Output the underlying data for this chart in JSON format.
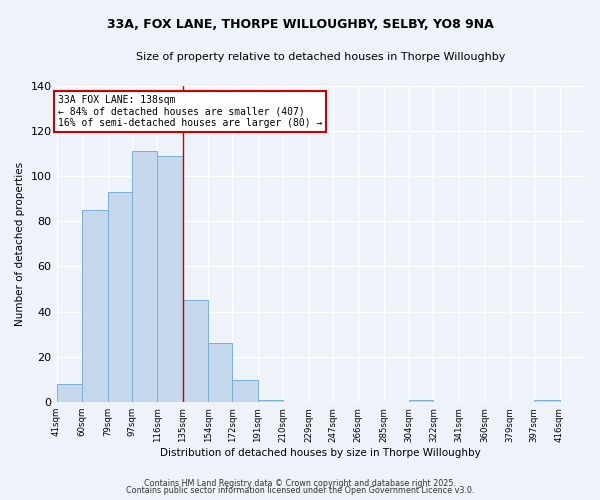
{
  "title_line1": "33A, FOX LANE, THORPE WILLOUGHBY, SELBY, YO8 9NA",
  "title_line2": "Size of property relative to detached houses in Thorpe Willoughby",
  "xlabel": "Distribution of detached houses by size in Thorpe Willoughby",
  "ylabel": "Number of detached properties",
  "bar_edges": [
    41,
    60,
    79,
    97,
    116,
    135,
    154,
    172,
    191,
    210,
    229,
    247,
    266,
    285,
    304,
    322,
    341,
    360,
    379,
    397,
    416
  ],
  "bar_heights": [
    8,
    85,
    93,
    111,
    109,
    45,
    26,
    10,
    1,
    0,
    0,
    0,
    0,
    0,
    1,
    0,
    0,
    0,
    0,
    1,
    0
  ],
  "bar_color": "#c6d9ec",
  "bar_edgecolor": "#7aafd4",
  "property_line_x": 135,
  "property_line_color": "#cc0000",
  "ylim": [
    0,
    140
  ],
  "yticks": [
    0,
    20,
    40,
    60,
    80,
    100,
    120,
    140
  ],
  "xtick_labels": [
    "41sqm",
    "60sqm",
    "79sqm",
    "97sqm",
    "116sqm",
    "135sqm",
    "154sqm",
    "172sqm",
    "191sqm",
    "210sqm",
    "229sqm",
    "247sqm",
    "266sqm",
    "285sqm",
    "304sqm",
    "322sqm",
    "341sqm",
    "360sqm",
    "379sqm",
    "397sqm",
    "416sqm"
  ],
  "annotation_title": "33A FOX LANE: 138sqm",
  "annotation_line1": "← 84% of detached houses are smaller (407)",
  "annotation_line2": "16% of semi-detached houses are larger (80) →",
  "annotation_box_color": "#ffffff",
  "annotation_box_edgecolor": "#cc0000",
  "background_color": "#eef2f9",
  "grid_color": "#ffffff",
  "footer_line1": "Contains HM Land Registry data © Crown copyright and database right 2025.",
  "footer_line2": "Contains public sector information licensed under the Open Government Licence v3.0."
}
